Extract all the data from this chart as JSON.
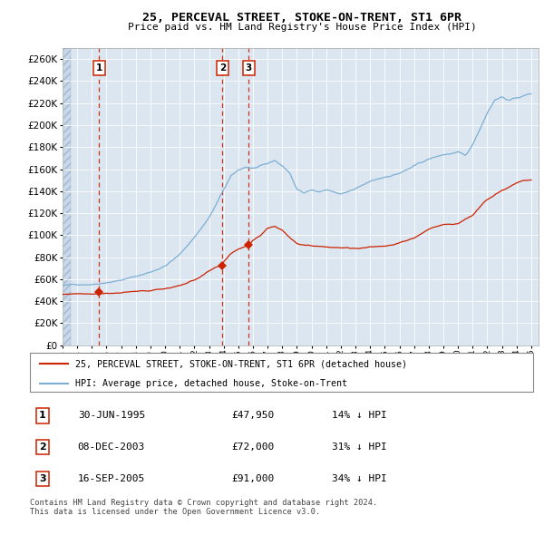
{
  "title": "25, PERCEVAL STREET, STOKE-ON-TRENT, ST1 6PR",
  "subtitle": "Price paid vs. HM Land Registry's House Price Index (HPI)",
  "ylim": [
    0,
    270000
  ],
  "yticks": [
    0,
    20000,
    40000,
    60000,
    80000,
    100000,
    120000,
    140000,
    160000,
    180000,
    200000,
    220000,
    240000,
    260000
  ],
  "hpi_color": "#7bafd4",
  "price_color": "#cc2200",
  "vline_color": "#cc2200",
  "bg_color": "#dce6f1",
  "transaction_prices": [
    47950,
    72000,
    91000
  ],
  "transaction_labels": [
    "1",
    "2",
    "3"
  ],
  "transaction_dates_num": [
    1995.5,
    2003.92,
    2005.71
  ],
  "transaction_info": [
    {
      "label": "1",
      "date": "30-JUN-1995",
      "price": "£47,950",
      "hpi_rel": "14% ↓ HPI"
    },
    {
      "label": "2",
      "date": "08-DEC-2003",
      "price": "£72,000",
      "hpi_rel": "31% ↓ HPI"
    },
    {
      "label": "3",
      "date": "16-SEP-2005",
      "price": "£91,000",
      "hpi_rel": "34% ↓ HPI"
    }
  ],
  "legend_line1": "25, PERCEVAL STREET, STOKE-ON-TRENT, ST1 6PR (detached house)",
  "legend_line2": "HPI: Average price, detached house, Stoke-on-Trent",
  "footnote": "Contains HM Land Registry data © Crown copyright and database right 2024.\nThis data is licensed under the Open Government Licence v3.0.",
  "xstart": 1993.0,
  "xend": 2025.5,
  "hpi_waypoints_x": [
    1993.0,
    1993.5,
    1994.0,
    1995.0,
    1995.5,
    1996.0,
    1997.0,
    1998.0,
    1999.0,
    2000.0,
    2001.0,
    2002.0,
    2003.0,
    2003.5,
    2004.0,
    2004.5,
    2005.0,
    2005.5,
    2006.0,
    2007.0,
    2007.5,
    2008.0,
    2008.5,
    2009.0,
    2009.5,
    2010.0,
    2010.5,
    2011.0,
    2011.5,
    2012.0,
    2013.0,
    2014.0,
    2015.0,
    2016.0,
    2017.0,
    2018.0,
    2019.0,
    2020.0,
    2020.5,
    2021.0,
    2021.5,
    2022.0,
    2022.5,
    2023.0,
    2023.5,
    2024.0,
    2024.5,
    2025.0
  ],
  "hpi_waypoints_y": [
    54000,
    54500,
    55000,
    56000,
    57000,
    58500,
    61000,
    64000,
    68000,
    74000,
    84000,
    100000,
    118000,
    130000,
    143000,
    155000,
    160000,
    163000,
    162000,
    165000,
    168000,
    163000,
    157000,
    142000,
    138000,
    142000,
    140000,
    142000,
    140000,
    138000,
    142000,
    148000,
    152000,
    156000,
    162000,
    168000,
    172000,
    174000,
    170000,
    180000,
    195000,
    210000,
    222000,
    225000,
    222000,
    224000,
    226000,
    228000
  ],
  "price_waypoints_x": [
    1993.0,
    1993.5,
    1994.0,
    1995.0,
    1995.5,
    1996.0,
    1997.0,
    1998.0,
    1999.0,
    2000.0,
    2001.0,
    2002.0,
    2003.0,
    2003.5,
    2003.92,
    2004.0,
    2004.5,
    2005.0,
    2005.5,
    2005.71,
    2006.0,
    2006.5,
    2007.0,
    2007.5,
    2008.0,
    2008.5,
    2009.0,
    2009.5,
    2010.0,
    2011.0,
    2012.0,
    2013.0,
    2014.0,
    2015.0,
    2016.0,
    2017.0,
    2018.0,
    2019.0,
    2020.0,
    2021.0,
    2022.0,
    2023.0,
    2024.0,
    2024.5,
    2025.0
  ],
  "price_waypoints_y": [
    46000,
    46500,
    47000,
    47500,
    47950,
    48500,
    49000,
    49500,
    50000,
    52000,
    55000,
    60000,
    68000,
    71000,
    72000,
    75000,
    83000,
    87000,
    90000,
    91000,
    96000,
    100000,
    107000,
    109000,
    105000,
    99000,
    94000,
    93000,
    92000,
    92000,
    91000,
    90000,
    92000,
    93000,
    96000,
    100000,
    108000,
    112000,
    113000,
    120000,
    135000,
    143000,
    150000,
    152000,
    152000
  ]
}
